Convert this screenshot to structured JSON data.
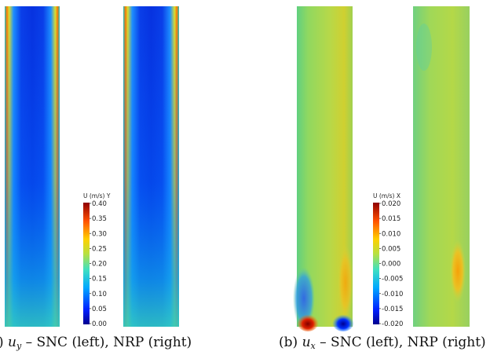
{
  "figure": {
    "panels": [
      {
        "id": "a",
        "caption_prefix": ") ",
        "caption_var": "u",
        "caption_sub": "y",
        "caption_rest": " – SNC (left), NRP (right)",
        "colorbar": {
          "title": "U (m/s) Y",
          "ticks": [
            "0.40",
            "0.35",
            "0.30",
            "0.25",
            "0.20",
            "0.15",
            "0.10",
            "0.05",
            "0.00"
          ]
        }
      },
      {
        "id": "b",
        "caption_prefix": "(b) ",
        "caption_var": "u",
        "caption_sub": "x",
        "caption_rest": " – SNC (left), NRP (right)",
        "colorbar": {
          "title": "U (m/s) X",
          "ticks": [
            "0.020",
            "0.015",
            "0.010",
            "0.005",
            "0.000",
            "-0.005",
            "-0.010",
            "-0.015",
            "-0.020"
          ]
        }
      }
    ]
  }
}
